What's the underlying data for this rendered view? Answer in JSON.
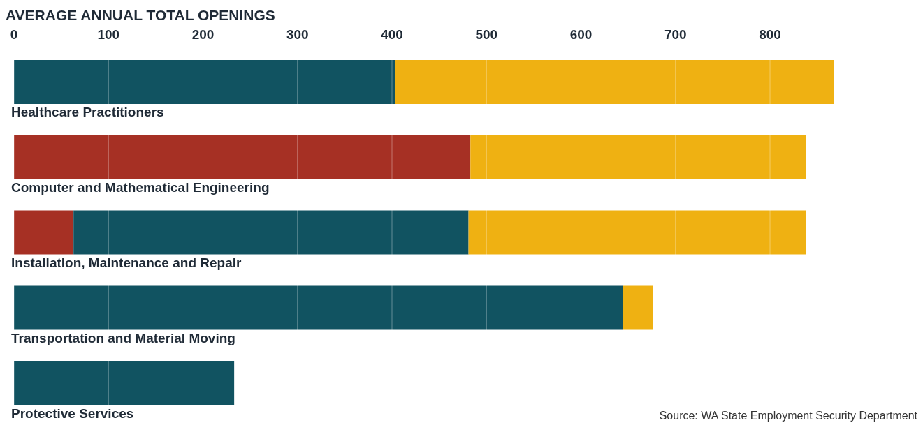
{
  "chart_data": {
    "type": "bar",
    "orientation": "horizontal",
    "stacked": true,
    "title": "AVERAGE ANNUAL TOTAL OPENINGS",
    "categories": [
      "Healthcare Practitioners",
      "Computer and Mathematical Engineering",
      "Installation, Maintenance and Repair",
      "Transportation and Material Moving",
      "Protective Services"
    ],
    "series": [
      {
        "color": "#a63024",
        "values": [
          0,
          483,
          63,
          0,
          0
        ]
      },
      {
        "color": "#115361",
        "values": [
          403,
          0,
          418,
          644,
          233
        ]
      },
      {
        "color": "#efb112",
        "values": [
          465,
          355,
          357,
          32,
          0
        ]
      }
    ],
    "xlim": [
      0,
      868
    ],
    "xticks": [
      0,
      100,
      200,
      300,
      400,
      500,
      600,
      700,
      800
    ],
    "grid": "x",
    "annotations": [
      "Source: WA State Employment Security Department"
    ]
  }
}
